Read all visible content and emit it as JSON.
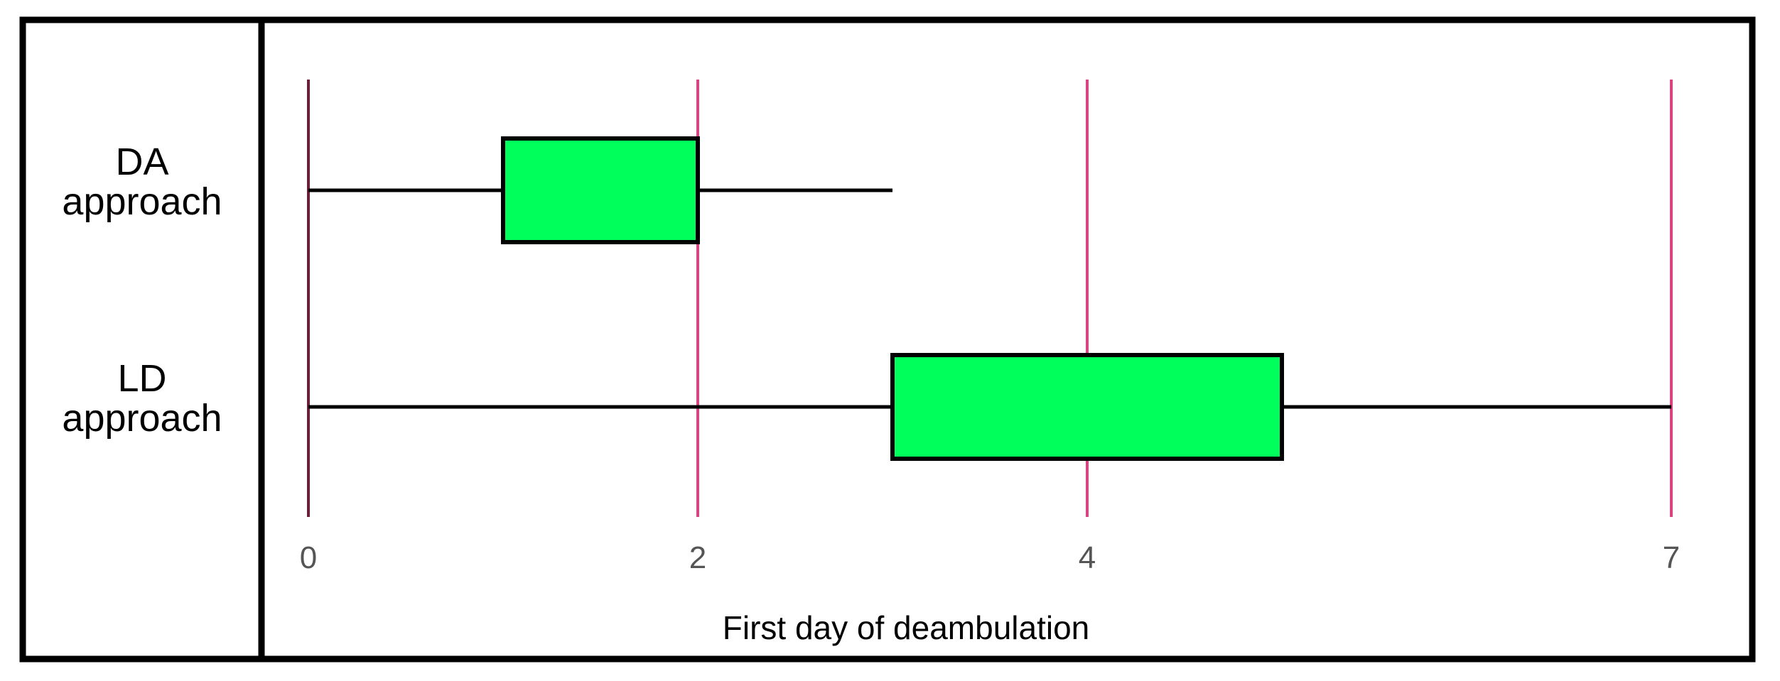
{
  "chart_data": {
    "type": "boxplot",
    "xlabel": "First day of deambulation",
    "xticks": [
      0,
      2,
      4,
      7
    ],
    "xlim": [
      0,
      7
    ],
    "categories": [
      "DA\napproach",
      "LD\napproach"
    ],
    "boxes": [
      {
        "label": "DA\napproach",
        "whisker_low": 0,
        "q1": 1,
        "q3": 2,
        "whisker_high": 3
      },
      {
        "label": "LD\napproach",
        "whisker_low": 0,
        "q1": 3,
        "q3": 5,
        "whisker_high": 7
      }
    ],
    "grid": "vertical at ticks",
    "colors": {
      "box_fill": "#00ff5a",
      "box_stroke": "#000000",
      "gridline": "#d9437f",
      "axis_zero_line": "#6b2038"
    }
  }
}
